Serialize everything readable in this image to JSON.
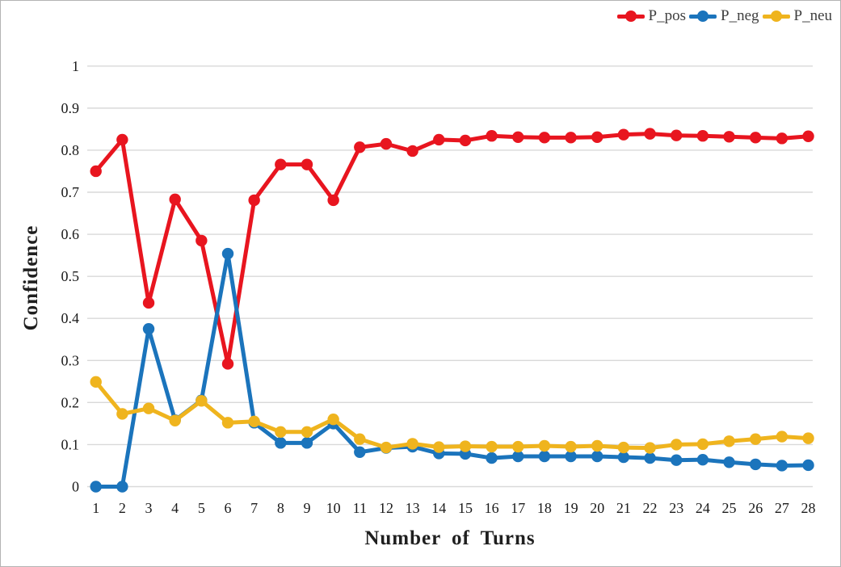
{
  "figure": {
    "background": "#ffffff",
    "border_color": "#b3b3b3"
  },
  "legend": {
    "position": "top-right",
    "items": [
      {
        "label": "P_pos",
        "color": "#e8151f"
      },
      {
        "label": "P_neg",
        "color": "#1b74bc"
      },
      {
        "label": "P_neu",
        "color": "#efb41e"
      }
    ]
  },
  "chart_data": {
    "type": "line",
    "title": "",
    "xlabel": "Number of Turns",
    "ylabel": "Confidence",
    "x": [
      1,
      2,
      3,
      4,
      5,
      6,
      7,
      8,
      9,
      10,
      11,
      12,
      13,
      14,
      15,
      16,
      17,
      18,
      19,
      20,
      21,
      22,
      23,
      24,
      25,
      26,
      27,
      28
    ],
    "xtick_labels": [
      "1",
      "2",
      "3",
      "4",
      "5",
      "6",
      "7",
      "8",
      "9",
      "10",
      "11",
      "12",
      "13",
      "14",
      "15",
      "16",
      "17",
      "18",
      "19",
      "20",
      "21",
      "22",
      "23",
      "24",
      "25",
      "26",
      "27",
      "28"
    ],
    "yticks": [
      0,
      0.1,
      0.2,
      0.3,
      0.4,
      0.5,
      0.6,
      0.7,
      0.8,
      0.9,
      1
    ],
    "ytick_labels": [
      "0",
      "0.1",
      "0.2",
      "0.3",
      "0.4",
      "0.5",
      "0.6",
      "0.7",
      "0.8",
      "0.9",
      "1"
    ],
    "ylim": [
      0,
      1
    ],
    "grid": "horizontal",
    "gridline_color": "#d9d9d9",
    "legend_position": "top-right",
    "series": [
      {
        "name": "P_pos",
        "color": "#e8151f",
        "values": [
          0.75,
          0.825,
          0.437,
          0.683,
          0.585,
          0.292,
          0.681,
          0.766,
          0.766,
          0.681,
          0.807,
          0.815,
          0.798,
          0.825,
          0.823,
          0.834,
          0.831,
          0.83,
          0.83,
          0.831,
          0.837,
          0.839,
          0.835,
          0.834,
          0.832,
          0.83,
          0.828,
          0.833
        ]
      },
      {
        "name": "P_neg",
        "color": "#1b74bc",
        "values": [
          0.0,
          0.0,
          0.375,
          0.158,
          0.205,
          0.554,
          0.152,
          0.104,
          0.104,
          0.15,
          0.082,
          0.092,
          0.095,
          0.079,
          0.078,
          0.068,
          0.072,
          0.072,
          0.072,
          0.072,
          0.07,
          0.068,
          0.063,
          0.064,
          0.058,
          0.053,
          0.05,
          0.051
        ]
      },
      {
        "name": "P_neu",
        "color": "#efb41e",
        "values": [
          0.249,
          0.173,
          0.186,
          0.157,
          0.204,
          0.152,
          0.155,
          0.13,
          0.13,
          0.16,
          0.113,
          0.093,
          0.102,
          0.094,
          0.096,
          0.095,
          0.095,
          0.097,
          0.095,
          0.097,
          0.093,
          0.092,
          0.1,
          0.101,
          0.108,
          0.113,
          0.119,
          0.115
        ]
      }
    ]
  }
}
